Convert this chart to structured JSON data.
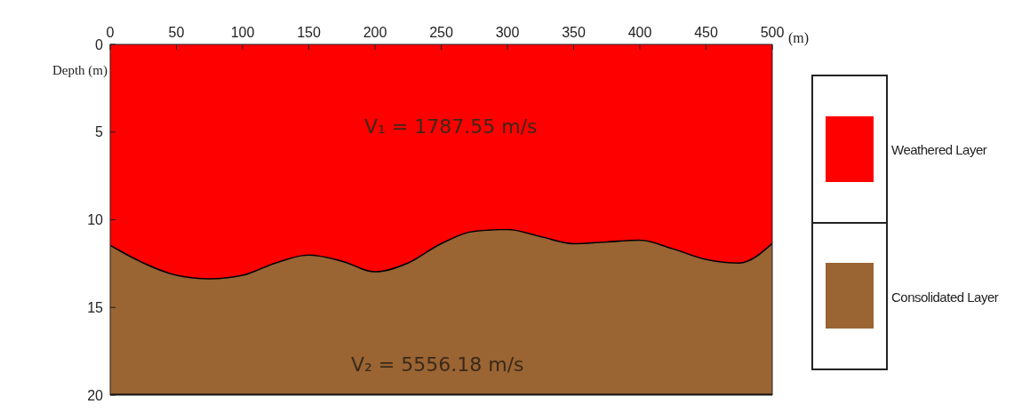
{
  "chart_data": {
    "type": "area",
    "stacked": true,
    "xlabel": "(m)",
    "ylabel": "Depth (m)",
    "x": [
      0,
      25,
      50,
      75,
      100,
      125,
      150,
      175,
      200,
      225,
      250,
      275,
      300,
      325,
      350,
      375,
      400,
      425,
      450,
      475,
      500
    ],
    "series": [
      {
        "name": "Weathered Layer",
        "color": "#fe0000",
        "values": [
          11.5,
          12.5,
          13.2,
          13.4,
          13.2,
          12.5,
          12.05,
          12.4,
          13.0,
          12.5,
          11.4,
          10.7,
          10.6,
          11.0,
          11.4,
          11.3,
          11.2,
          11.7,
          12.3,
          12.5,
          11.4
        ]
      },
      {
        "name": "Consolidated Layer",
        "color": "#9a6433",
        "values": [
          8.5,
          7.5,
          6.8,
          6.6,
          6.8,
          7.5,
          7.95,
          7.6,
          7.0,
          7.5,
          8.6,
          9.3,
          9.4,
          9.0,
          8.6,
          8.7,
          8.8,
          8.3,
          7.7,
          7.5,
          8.6
        ]
      }
    ],
    "xlim": [
      0,
      500
    ],
    "xticks": [
      0,
      50,
      100,
      150,
      200,
      250,
      300,
      350,
      400,
      450,
      500
    ],
    "ylim": [
      20,
      0
    ],
    "yticks": [
      0,
      5,
      10,
      15,
      20
    ],
    "annotations": [
      "V₁ = 1787.55 m/s",
      "V₂ = 5556.18 m/s"
    ],
    "legend": "right"
  }
}
